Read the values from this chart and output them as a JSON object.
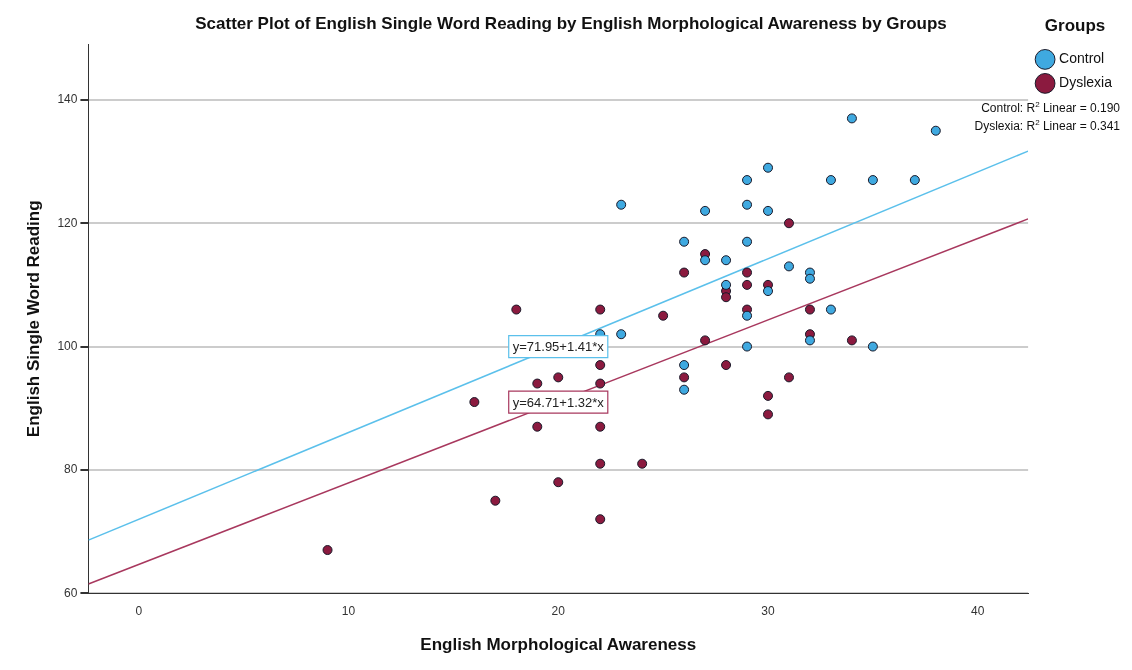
{
  "chart_data": {
    "type": "scatter",
    "title": "Scatter Plot of English Single Word Reading by English Morphological Awareness by Groups",
    "xlabel": "English Morphological Awareness",
    "ylabel": "English Single Word Reading",
    "legend_title": "Groups",
    "legend": "top right",
    "grid": "y",
    "marker": "circle",
    "xlim": [
      -2.4,
      42.4
    ],
    "xticks": [
      0,
      10,
      20,
      30,
      40
    ],
    "ylim": [
      60,
      149
    ],
    "yticks": [
      60,
      80,
      100,
      120,
      140
    ],
    "series": [
      {
        "name": "Control",
        "color": "#3fa9e0",
        "x": [
          34,
          38,
          30,
          29,
          33,
          35,
          37,
          27,
          29,
          30,
          23,
          26,
          29,
          27,
          28,
          31,
          32,
          32,
          28,
          30,
          29,
          33,
          32,
          29,
          35,
          26,
          26,
          22,
          23
        ],
        "values": [
          137,
          135,
          129,
          127,
          127,
          127,
          127,
          122,
          123,
          122,
          123,
          117,
          117,
          114,
          114,
          113,
          112,
          111,
          110,
          109,
          105,
          106,
          101,
          100,
          100,
          97,
          93,
          102,
          102
        ]
      },
      {
        "name": "Dyslexia",
        "color": "#8b1a3f",
        "x": [
          31,
          27,
          26,
          29,
          29,
          30,
          28,
          28,
          25,
          29,
          32,
          32,
          27,
          34,
          28,
          26,
          31,
          30,
          30,
          18,
          22,
          22,
          20,
          19,
          22,
          16,
          19,
          22,
          22,
          24,
          20,
          17,
          22,
          9
        ],
        "values": [
          120,
          115,
          112,
          112,
          110,
          110,
          109,
          108,
          105,
          106,
          106,
          102,
          101,
          101,
          97,
          95,
          95,
          92,
          89,
          106,
          106,
          97,
          95,
          94,
          94,
          91,
          87,
          87,
          81,
          81,
          78,
          75,
          72,
          67
        ]
      },
      {
        "type": "line",
        "marker": "none",
        "color": "#5bc0eb",
        "x": [
          -2.4,
          42.4
        ],
        "values": [
          68.6,
          131.7
        ]
      },
      {
        "type": "line",
        "marker": "none",
        "color": "#a8385e",
        "x": [
          -2.4,
          42.4
        ],
        "values": [
          61.5,
          120.7
        ]
      }
    ],
    "annotations": [
      {
        "text": "y=71.95+1.41*x",
        "x": 20,
        "y": 100
      },
      {
        "text": "y=64.71+1.32*x",
        "x": 20,
        "y": 91
      },
      "Control: R$^{2}$ Linear = 0.190",
      "Dyslexia: R$^{2}$ Linear = 0.341"
    ]
  }
}
